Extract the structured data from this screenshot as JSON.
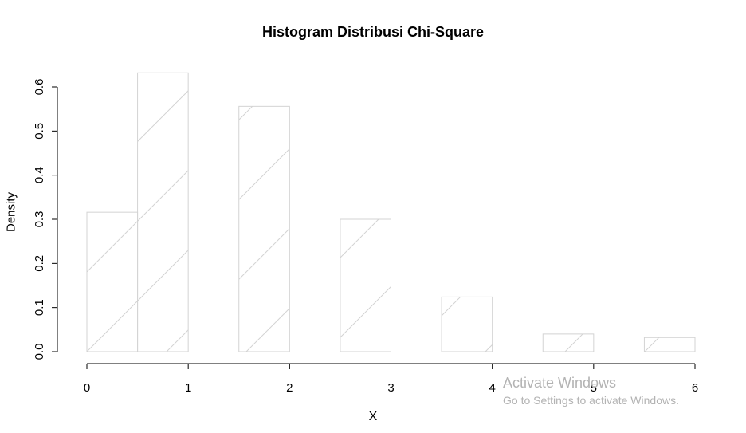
{
  "chart_data": {
    "type": "bar",
    "title": "Histogram Distribusi Chi-Square",
    "xlabel": "X",
    "ylabel": "Density",
    "bins": [
      {
        "x0": 0.0,
        "x1": 0.5,
        "density": 0.316
      },
      {
        "x0": 0.5,
        "x1": 1.0,
        "density": 0.632
      },
      {
        "x0": 1.0,
        "x1": 1.5,
        "density": 0.0
      },
      {
        "x0": 1.5,
        "x1": 2.0,
        "density": 0.556
      },
      {
        "x0": 2.0,
        "x1": 2.5,
        "density": 0.0
      },
      {
        "x0": 2.5,
        "x1": 3.0,
        "density": 0.3
      },
      {
        "x0": 3.0,
        "x1": 3.5,
        "density": 0.0
      },
      {
        "x0": 3.5,
        "x1": 4.0,
        "density": 0.124
      },
      {
        "x0": 4.0,
        "x1": 4.5,
        "density": 0.0
      },
      {
        "x0": 4.5,
        "x1": 5.0,
        "density": 0.04
      },
      {
        "x0": 5.0,
        "x1": 5.5,
        "density": 0.0
      },
      {
        "x0": 5.5,
        "x1": 6.0,
        "density": 0.032
      }
    ],
    "xlim": [
      0,
      6
    ],
    "ylim": [
      0,
      0.6
    ],
    "xticks": [
      0,
      1,
      2,
      3,
      4,
      5,
      6
    ],
    "xtick_labels": [
      "0",
      "1",
      "2",
      "3",
      "4",
      "5",
      "6"
    ],
    "yticks": [
      0.0,
      0.1,
      0.2,
      0.3,
      0.4,
      0.5,
      0.6
    ],
    "ytick_labels": [
      "0.0",
      "0.1",
      "0.2",
      "0.3",
      "0.4",
      "0.5",
      "0.6"
    ],
    "bar_border_color": "#d3d3d3",
    "hatch": "diagonal",
    "grid": false,
    "legend": "none"
  },
  "watermark": {
    "title": "Activate Windows",
    "subtitle": "Go to Settings to activate Windows."
  }
}
